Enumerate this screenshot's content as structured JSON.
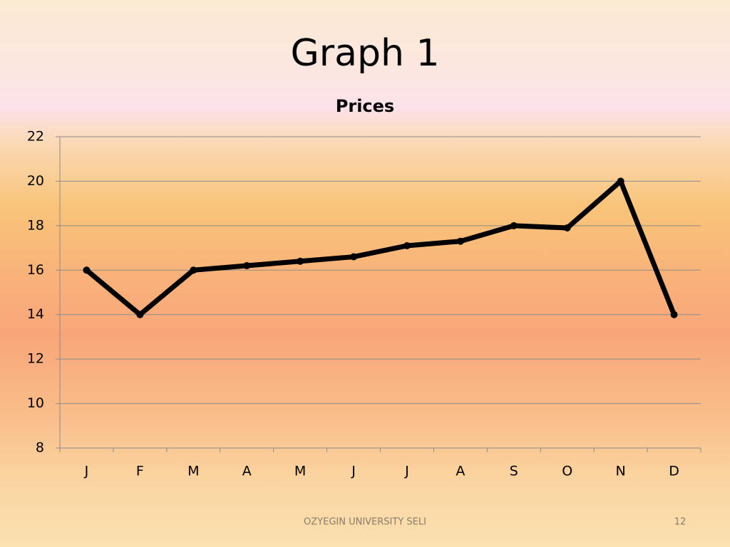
{
  "slide": {
    "title": "Graph 1",
    "footer": "OZYEGIN UNIVERSITY SELI",
    "page_number": "12"
  },
  "chart_data": {
    "type": "line",
    "title": "Prices",
    "categories": [
      "J",
      "F",
      "M",
      "A",
      "M",
      "J",
      "J",
      "A",
      "S",
      "O",
      "N",
      "D"
    ],
    "series": [
      {
        "name": "Prices",
        "color": "#000000",
        "values": [
          16,
          14,
          16,
          16.2,
          16.4,
          16.6,
          17.1,
          17.3,
          18,
          17.9,
          20,
          14
        ]
      }
    ],
    "ylim": [
      8,
      22
    ],
    "yticks": [
      8,
      10,
      12,
      14,
      16,
      18,
      20,
      22
    ],
    "grid": true
  }
}
